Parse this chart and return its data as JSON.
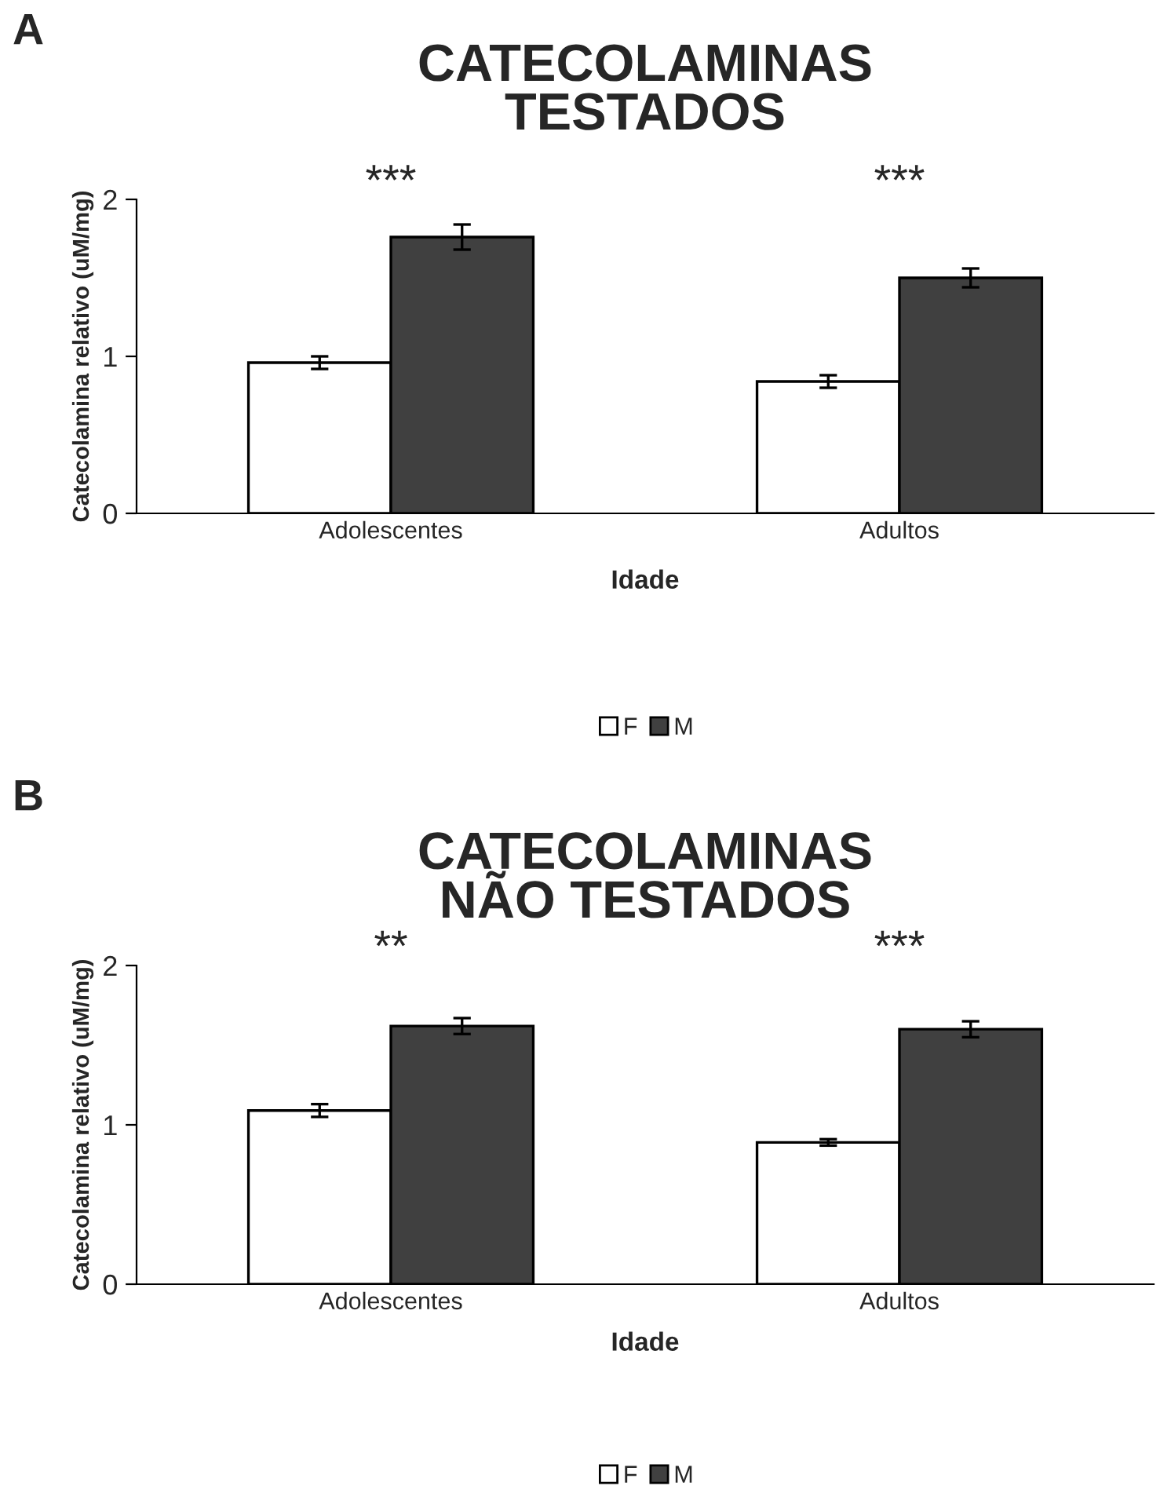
{
  "chart_data": [
    {
      "type": "bar",
      "title": "CATECOLAMINAS\nTESTADOS",
      "xlabel": "Idade",
      "ylabel": "Catecolamina relativo (uM/mg)",
      "categories": [
        "Adolescentes",
        "Adultos"
      ],
      "series": [
        {
          "name": "F",
          "color": "#ffffff",
          "values": [
            0.96,
            0.84
          ],
          "errors": [
            0.04,
            0.04
          ]
        },
        {
          "name": "M",
          "color": "#404040",
          "values": [
            1.76,
            1.5
          ],
          "errors": [
            0.08,
            0.06
          ]
        }
      ],
      "ylim": [
        0,
        2
      ],
      "yticks": [
        0,
        1,
        2
      ],
      "grid": false,
      "legend": "bottom",
      "annotations": [
        "A",
        "***",
        "***"
      ]
    },
    {
      "type": "bar",
      "title": "CATECOLAMINAS\nNÃO TESTADOS",
      "xlabel": "Idade",
      "ylabel": "Catecolamina relativo (uM/mg)",
      "categories": [
        "Adolescentes",
        "Adultos"
      ],
      "series": [
        {
          "name": "F",
          "color": "#ffffff",
          "values": [
            1.09,
            0.89
          ],
          "errors": [
            0.04,
            0.02
          ]
        },
        {
          "name": "M",
          "color": "#404040",
          "values": [
            1.62,
            1.6
          ],
          "errors": [
            0.05,
            0.05
          ]
        }
      ],
      "ylim": [
        0,
        2
      ],
      "yticks": [
        0,
        1,
        2
      ],
      "grid": false,
      "legend": "bottom",
      "annotations": [
        "B",
        "**",
        "***"
      ]
    }
  ]
}
